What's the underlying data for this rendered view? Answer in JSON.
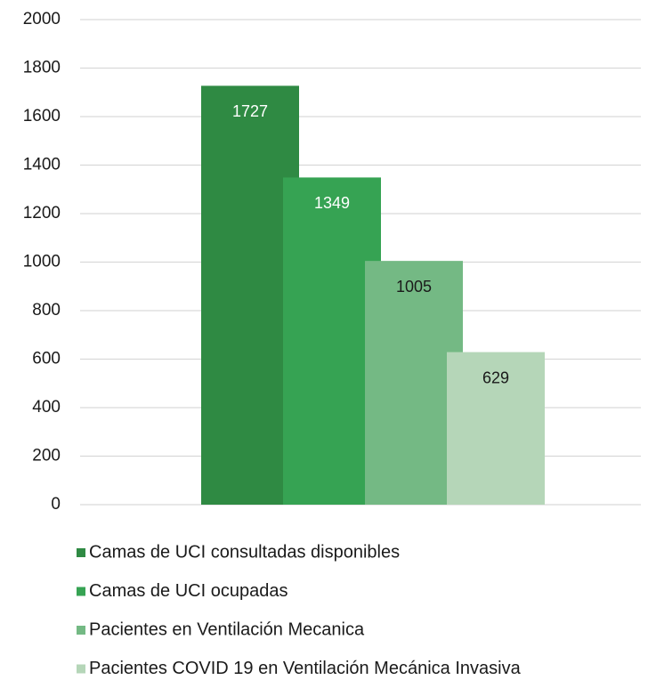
{
  "chart_data": {
    "type": "bar",
    "categories": [
      null
    ],
    "series": [
      {
        "name": "Camas de UCI consultadas disponibles",
        "color": "#2f8a43",
        "values": [
          1727
        ]
      },
      {
        "name": "Camas de UCI ocupadas",
        "color": "#36a353",
        "values": [
          1349
        ]
      },
      {
        "name": "Pacientes en Ventilación Mecanica",
        "color": "#74b984",
        "values": [
          1005
        ]
      },
      {
        "name": "Pacientes COVID 19 en Ventilación Mecánica Invasiva",
        "color": "#b5d6b8",
        "values": [
          629
        ]
      }
    ],
    "ylim": [
      0,
      2000
    ],
    "yticks": [
      0,
      200,
      400,
      600,
      800,
      1000,
      1200,
      1400,
      1600,
      1800,
      2000
    ],
    "grid": true
  }
}
